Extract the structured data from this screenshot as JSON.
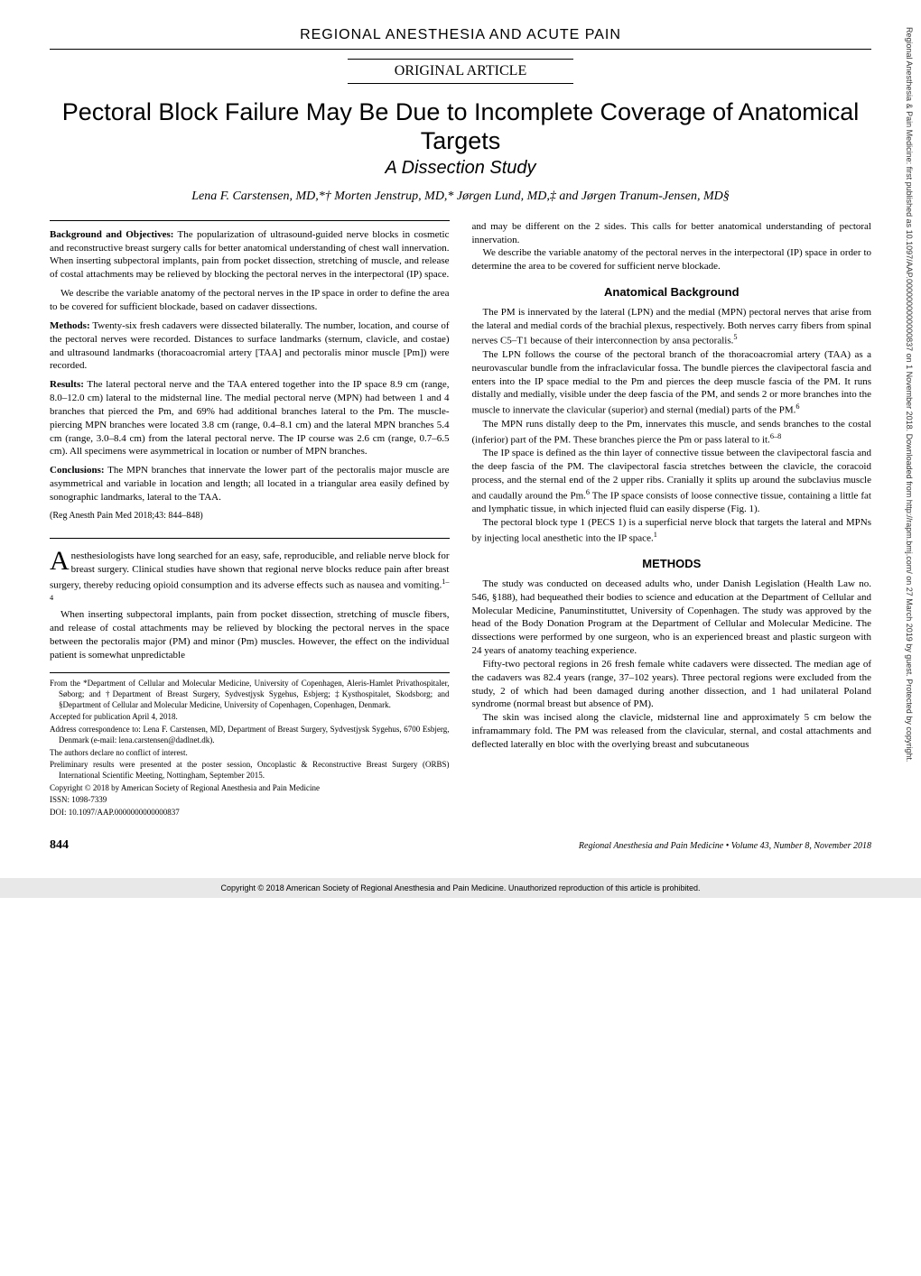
{
  "header": {
    "section_label": "REGIONAL ANESTHESIA AND ACUTE PAIN",
    "article_type": "ORIGINAL ARTICLE"
  },
  "title": {
    "main": "Pectoral Block Failure May Be Due to Incomplete Coverage of Anatomical Targets",
    "sub": "A Dissection Study"
  },
  "authors": "Lena F. Carstensen, MD,*† Morten Jenstrup, MD,* Jørgen Lund, MD,‡ and Jørgen Tranum-Jensen, MD§",
  "abstract": {
    "bg_label": "Background and Objectives:",
    "bg": " The popularization of ultrasound-guided nerve blocks in cosmetic and reconstructive breast surgery calls for better anatomical understanding of chest wall innervation. When inserting subpectoral implants, pain from pocket dissection, stretching of muscle, and release of costal attachments may be relieved by blocking the pectoral nerves in the interpectoral (IP) space.",
    "bg2": "We describe the variable anatomy of the pectoral nerves in the IP space in order to define the area to be covered for sufficient blockade, based on cadaver dissections.",
    "methods_label": "Methods:",
    "methods": " Twenty-six fresh cadavers were dissected bilaterally. The number, location, and course of the pectoral nerves were recorded. Distances to surface landmarks (sternum, clavicle, and costae) and ultrasound landmarks (thoracoacromial artery [TAA] and pectoralis minor muscle [Pm]) were recorded.",
    "results_label": "Results:",
    "results": " The lateral pectoral nerve and the TAA entered together into the IP space 8.9 cm (range, 8.0–12.0 cm) lateral to the midsternal line. The medial pectoral nerve (MPN) had between 1 and 4 branches that pierced the Pm, and 69% had additional branches lateral to the Pm. The muscle-piercing MPN branches were located 3.8 cm (range, 0.4–8.1 cm) and the lateral MPN branches 5.4 cm (range, 3.0–8.4 cm) from the lateral pectoral nerve. The IP course was 2.6 cm (range, 0.7–6.5 cm). All specimens were asymmetrical in location or number of MPN branches.",
    "concl_label": "Conclusions:",
    "concl": " The MPN branches that innervate the lower part of the pectoralis major muscle are asymmetrical and variable in location and length; all located in a triangular area easily defined by sonographic landmarks, lateral to the TAA.",
    "citation": "(Reg Anesth Pain Med 2018;43: 844–848)"
  },
  "intro": {
    "p1": "nesthesiologists have long searched for an easy, safe, reproducible, and reliable nerve block for breast surgery. Clinical studies have shown that regional nerve blocks reduce pain after breast surgery, thereby reducing opioid consumption and its adverse effects such as nausea and vomiting.",
    "p2": "When inserting subpectoral implants, pain from pocket dissection, stretching of muscle fibers, and release of costal attachments may be relieved by blocking the pectoral nerves in the space between the pectoralis major (PM) and minor (Pm) muscles. However, the effect on the individual patient is somewhat unpredictable",
    "sup1": "1–4"
  },
  "col2": {
    "p1": "and may be different on the 2 sides. This calls for better anatomical understanding of pectoral innervation.",
    "p2": "We describe the variable anatomy of the pectoral nerves in the interpectoral (IP) space in order to determine the area to be covered for sufficient nerve blockade."
  },
  "anat": {
    "heading": "Anatomical Background",
    "p1": "The PM is innervated by the lateral (LPN) and the medial (MPN) pectoral nerves that arise from the lateral and medial cords of the brachial plexus, respectively. Both nerves carry fibers from spinal nerves C5–T1 because of their interconnection by ansa pectoralis.",
    "p2": "The LPN follows the course of the pectoral branch of the thoracoacromial artery (TAA) as a neurovascular bundle from the infraclavicular fossa. The bundle pierces the clavipectoral fascia and enters into the IP space medial to the Pm and pierces the deep muscle fascia of the PM. It runs distally and medially, visible under the deep fascia of the PM, and sends 2 or more branches into the muscle to innervate the clavicular (superior) and sternal (medial) parts of the PM.",
    "p3": "The MPN runs distally deep to the Pm, innervates this muscle, and sends branches to the costal (inferior) part of the PM. These branches pierce the Pm or pass lateral to it.",
    "p4": "The IP space is defined as the thin layer of connective tissue between the clavipectoral fascia and the deep fascia of the PM. The clavipectoral fascia stretches between the clavicle, the coracoid process, and the sternal end of the 2 upper ribs. Cranially it splits up around the subclavius muscle and caudally around the Pm.",
    "p4b": " The IP space consists of loose connective tissue, containing a little fat and lymphatic tissue, in which injected fluid can easily disperse (Fig. 1).",
    "p5": "The pectoral block type 1 (PECS 1) is a superficial nerve block that targets the lateral and MPNs by injecting local anesthetic into the IP space.",
    "sup1": "5",
    "sup2": "6",
    "sup3": "6–8",
    "sup4": "6",
    "sup5": "1"
  },
  "methods": {
    "heading": "METHODS",
    "p1": "The study was conducted on deceased adults who, under Danish Legislation (Health Law no. 546, §188), had bequeathed their bodies to science and education at the Department of Cellular and Molecular Medicine, Panuminstituttet, University of Copenhagen. The study was approved by the head of the Body Donation Program at the Department of Cellular and Molecular Medicine. The dissections were performed by one surgeon, who is an experienced breast and plastic surgeon with 24 years of anatomy teaching experience.",
    "p2": "Fifty-two pectoral regions in 26 fresh female white cadavers were dissected. The median age of the cadavers was 82.4 years (range, 37–102 years). Three pectoral regions were excluded from the study, 2 of which had been damaged during another dissection, and 1 had unilateral Poland syndrome (normal breast but absence of PM).",
    "p3": "The skin was incised along the clavicle, midsternal line and approximately 5 cm below the inframammary fold. The PM was released from the clavicular, sternal, and costal attachments and deflected laterally en bloc with the overlying breast and subcutaneous"
  },
  "footnotes": {
    "l1": "From the *Department of Cellular and Molecular Medicine, University of Copenhagen, Aleris-Hamlet Privathospitaler, Søborg; and †Department of Breast Surgery, Sydvestjysk Sygehus, Esbjerg; ‡Kysthospitalet, Skodsborg; and §Department of Cellular and Molecular Medicine, University of Copenhagen, Copenhagen, Denmark.",
    "l2": "Accepted for publication April 4, 2018.",
    "l3": "Address correspondence to: Lena F. Carstensen, MD, Department of Breast Surgery, Sydvestjysk Sygehus, 6700 Esbjerg, Denmark (e-mail: lena.carstensen@dadlnet.dk).",
    "l4": "The authors declare no conflict of interest.",
    "l5": "Preliminary results were presented at the poster session, Oncoplastic & Reconstructive Breast Surgery (ORBS) International Scientific Meeting, Nottingham, September 2015.",
    "l6": "Copyright © 2018 by American Society of Regional Anesthesia and Pain Medicine",
    "l7": "ISSN: 1098-7339",
    "l8": "DOI: 10.1097/AAP.0000000000000837"
  },
  "footer": {
    "page": "844",
    "journal": "Regional Anesthesia and Pain Medicine • Volume 43, Number 8, November 2018"
  },
  "copyright": "Copyright © 2018 American Society of Regional Anesthesia and Pain Medicine. Unauthorized reproduction of this article is prohibited.",
  "sidebar": "Regional Anesthesia & Pain Medicine: first published as 10.1097/AAP.0000000000000837 on 1 November 2018. Downloaded from http://rapm.bmj.com/ on 27 March 2019 by guest. Protected by copyright."
}
